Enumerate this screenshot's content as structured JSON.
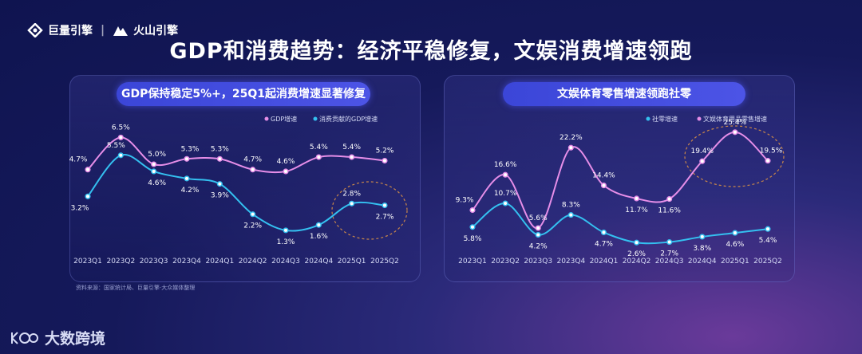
{
  "brand": {
    "primary": "巨量引擎",
    "secondary": "火山引擎"
  },
  "title": "GDP和消费趋势：经济平稳修复，文娱消费增速领跑",
  "colors": {
    "pink": "#e68ee8",
    "cyan": "#34c0f0"
  },
  "chart_data": [
    {
      "type": "line",
      "panel_title": "GDP保持稳定5%+，25Q1起消费增速显著修复",
      "categories": [
        "2023Q1",
        "2023Q2",
        "2023Q3",
        "2023Q4",
        "2024Q1",
        "2024Q2",
        "2024Q3",
        "2024Q4",
        "2025Q1",
        "2025Q2"
      ],
      "series": [
        {
          "name": "GDP增速",
          "color": "#e68ee8",
          "values": [
            4.7,
            6.5,
            5.0,
            5.3,
            5.3,
            4.7,
            4.6,
            5.4,
            5.4,
            5.2
          ],
          "labels": [
            "4.7%",
            "6.5%",
            "5.0%",
            "5.3%",
            "5.3%",
            "4.7%",
            "4.6%",
            "5.4%",
            "5.4%",
            "5.2%"
          ]
        },
        {
          "name": "消费贡献的GDP增速",
          "color": "#34c0f0",
          "values": [
            3.2,
            5.5,
            4.6,
            4.2,
            3.9,
            2.2,
            1.3,
            1.6,
            2.8,
            2.7
          ],
          "labels": [
            "3.2%",
            "5.5%",
            "4.6%",
            "4.2%",
            "3.9%",
            "2.2%",
            "1.3%",
            "1.6%",
            "2.8%",
            "2.7%"
          ]
        }
      ],
      "ylim": [
        0,
        7.5
      ],
      "highlight": "2025Q1-2025Q2"
    },
    {
      "type": "line",
      "panel_title": "文娱体育零售增速领跑社零",
      "categories": [
        "2023Q1",
        "2023Q2",
        "2023Q3",
        "2023Q4",
        "2024Q1",
        "2024Q2",
        "2024Q3",
        "2024Q4",
        "2025Q1",
        "2025Q2"
      ],
      "series": [
        {
          "name": "社零增速",
          "color": "#34c0f0",
          "values": [
            5.8,
            10.7,
            4.2,
            8.3,
            4.7,
            2.6,
            2.7,
            3.8,
            4.6,
            5.4
          ],
          "labels": [
            "5.8%",
            "10.7%",
            "4.2%",
            "8.3%",
            "4.7%",
            "2.6%",
            "2.7%",
            "3.8%",
            "4.6%",
            "5.4%"
          ]
        },
        {
          "name": "文娱体育用品零售增速",
          "color": "#e68ee8",
          "values": [
            9.3,
            16.6,
            5.6,
            22.2,
            14.4,
            11.7,
            11.6,
            19.4,
            25.4,
            19.5
          ],
          "labels": [
            "9.3%",
            "16.6%",
            "5.6%",
            "22.2%",
            "14.4%",
            "11.7%",
            "11.6%",
            "19.4%",
            "25.4%",
            "19.5%"
          ]
        }
      ],
      "ylim": [
        0,
        28
      ],
      "highlight": "2024Q4-2025Q2"
    }
  ],
  "source": "资料来源：国家统计局、巨量引擎·大众媒体整理",
  "footer": "大数跨境"
}
